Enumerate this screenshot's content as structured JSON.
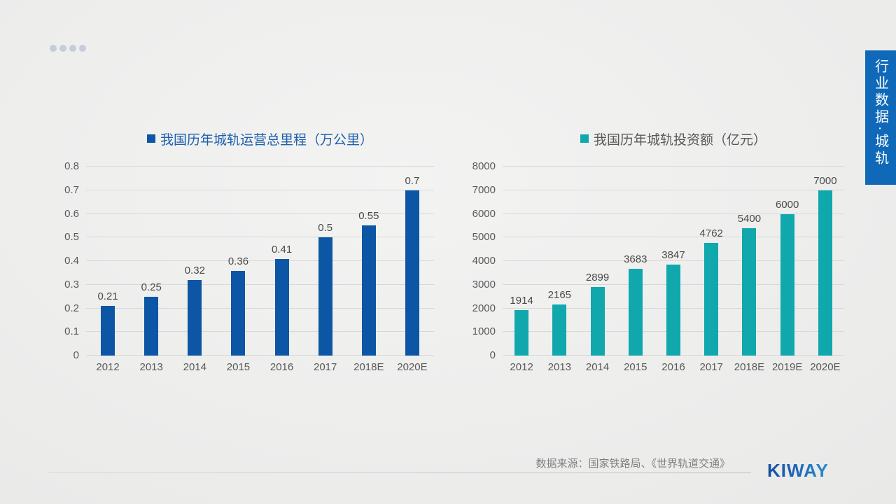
{
  "side_tab": {
    "label": "行业数据·城轨",
    "bg": "#1069b8"
  },
  "footer": {
    "source": "数据来源：国家铁路局、《世界轨道交通》",
    "brand": "KIWAY"
  },
  "chart_data": [
    {
      "type": "bar",
      "title": "我国历年城轨运营总里程（万公里）",
      "categories": [
        "2012",
        "2013",
        "2014",
        "2015",
        "2016",
        "2017",
        "2018E",
        "2020E"
      ],
      "values": [
        0.21,
        0.25,
        0.32,
        0.36,
        0.41,
        0.5,
        0.55,
        0.7
      ],
      "yticks": [
        "0",
        "0.1",
        "0.2",
        "0.3",
        "0.4",
        "0.5",
        "0.6",
        "0.7",
        "0.8"
      ],
      "ylim": [
        0,
        0.8
      ],
      "grid": true,
      "legend_position": "top",
      "bar_color": "#0c56a5",
      "title_color": "#1d5fad"
    },
    {
      "type": "bar",
      "title": "我国历年城轨投资额（亿元）",
      "categories": [
        "2012",
        "2013",
        "2014",
        "2015",
        "2016",
        "2017",
        "2018E",
        "2019E",
        "2020E"
      ],
      "values": [
        1914,
        2165,
        2899,
        3683,
        3847,
        4762,
        5400,
        6000,
        7000
      ],
      "yticks": [
        "0",
        "1000",
        "2000",
        "3000",
        "4000",
        "5000",
        "6000",
        "7000",
        "8000"
      ],
      "ylim": [
        0,
        8000
      ],
      "grid": true,
      "legend_position": "top",
      "bar_color": "#10a8ad",
      "title_color": "#595959"
    }
  ]
}
